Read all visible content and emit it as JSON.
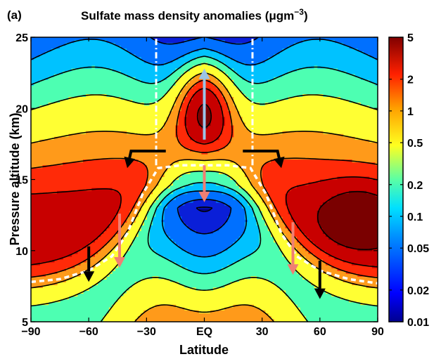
{
  "chart_data": {
    "type": "heatmap",
    "panel_label": "(a)",
    "title": "Sulfate mass density anomalies (μgm",
    "title_unit_exponent": "−3",
    "title_close": ")",
    "xlabel": "Latitude",
    "ylabel": "Pressure altitude (km)",
    "xlim": [
      -90,
      90
    ],
    "ylim": [
      5,
      25
    ],
    "x_ticks": [
      {
        "value": -90,
        "label": "−90"
      },
      {
        "value": -60,
        "label": "−60"
      },
      {
        "value": -30,
        "label": "−30"
      },
      {
        "value": 0,
        "label": "EQ"
      },
      {
        "value": 30,
        "label": "30"
      },
      {
        "value": 60,
        "label": "60"
      },
      {
        "value": 90,
        "label": "90"
      }
    ],
    "y_ticks": [
      {
        "value": 5,
        "label": "5"
      },
      {
        "value": 10,
        "label": "10"
      },
      {
        "value": 15,
        "label": "15"
      },
      {
        "value": 20,
        "label": "20"
      },
      {
        "value": 25,
        "label": "25"
      }
    ],
    "colorbar": {
      "scale": "log",
      "range": [
        0.01,
        5
      ],
      "ticks": [
        {
          "value": 5,
          "label": "5"
        },
        {
          "value": 2,
          "label": "2"
        },
        {
          "value": 1,
          "label": "1"
        },
        {
          "value": 0.5,
          "label": "0.5"
        },
        {
          "value": 0.2,
          "label": "0.2"
        },
        {
          "value": 0.1,
          "label": "0.1"
        },
        {
          "value": 0.05,
          "label": "0.05"
        },
        {
          "value": 0.02,
          "label": "0.02"
        },
        {
          "value": 0.01,
          "label": "0.01"
        }
      ]
    },
    "contour_levels": [
      0.01,
      0.02,
      0.05,
      0.1,
      0.2,
      0.5,
      1,
      2,
      5
    ],
    "level_colors": [
      "#00008f",
      "#0a1fd8",
      "#0070ff",
      "#00c2ff",
      "#4dffb2",
      "#ffff33",
      "#ff9a1a",
      "#ff2a08",
      "#c80000",
      "#7a0000"
    ],
    "tropopause": {
      "style": "white dashed",
      "lat": [
        -90,
        -75,
        -60,
        -48,
        -40,
        -32,
        -24,
        -12,
        0,
        12,
        24,
        32,
        40,
        48,
        60,
        75,
        90
      ],
      "alt": [
        7.8,
        8.0,
        8.6,
        9.6,
        11.2,
        14.0,
        15.8,
        16.0,
        16.0,
        16.0,
        15.8,
        14.0,
        11.2,
        9.6,
        8.6,
        8.0,
        7.7
      ]
    },
    "tropical_boundaries": {
      "style": "white dash-dot",
      "lat": [
        -25,
        25
      ],
      "from_alt": 16,
      "to_alt": 25
    },
    "arrows": [
      {
        "color": "light-blue",
        "lat": [
          0,
          0
        ],
        "alt": [
          17.8,
          22.8
        ]
      },
      {
        "color": "salmon",
        "lat": [
          0,
          0
        ],
        "alt": [
          16.0,
          13.4
        ]
      },
      {
        "color": "black",
        "lat": [
          -20,
          -38,
          -40
        ],
        "alt": [
          17.0,
          17.0,
          15.8
        ]
      },
      {
        "color": "black",
        "lat": [
          20,
          38,
          40
        ],
        "alt": [
          17.0,
          17.0,
          15.8
        ]
      },
      {
        "color": "salmon",
        "lat": [
          -44,
          -44
        ],
        "alt": [
          12.6,
          8.8
        ]
      },
      {
        "color": "salmon",
        "lat": [
          46,
          46
        ],
        "alt": [
          12.0,
          8.3
        ]
      },
      {
        "color": "black",
        "lat": [
          -60,
          -60
        ],
        "alt": [
          10.3,
          7.8
        ]
      },
      {
        "color": "black",
        "lat": [
          60,
          60
        ],
        "alt": [
          9.3,
          6.6
        ]
      }
    ]
  }
}
